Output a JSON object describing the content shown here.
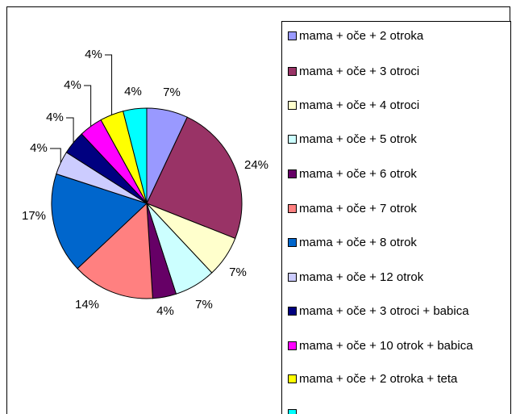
{
  "chart_data": {
    "type": "pie",
    "categories": [
      "mama + oče + 2 otroka",
      "mama + oče + 3 otroci",
      "mama + oče + 4 otroci",
      "mama + oče + 5 otrok",
      "mama + oče + 6 otrok",
      "mama + oče + 7 otrok",
      "mama + oče + 8 otrok",
      "mama + oče + 12 otrok",
      "mama + oče + 3 otroci + babica",
      "mama + oče + 10 otrok + babica",
      "mama + oče + 2 otroka + teta",
      null
    ],
    "values": [
      7,
      24,
      7,
      7,
      4,
      14,
      17,
      4,
      4,
      4,
      4,
      4
    ],
    "value_labels": [
      "7%",
      "24%",
      "7%",
      "7%",
      "4%",
      "14%",
      "17%",
      "4%",
      "4%",
      "4%",
      "4%",
      "4%"
    ],
    "colors": [
      "#9999FF",
      "#993366",
      "#FFFFCC",
      "#CCFFFF",
      "#660066",
      "#FF8080",
      "#0066CC",
      "#CCCCFF",
      "#000080",
      "#FF00FF",
      "#FFFF00",
      "#00FFFF"
    ],
    "legend": "right"
  }
}
